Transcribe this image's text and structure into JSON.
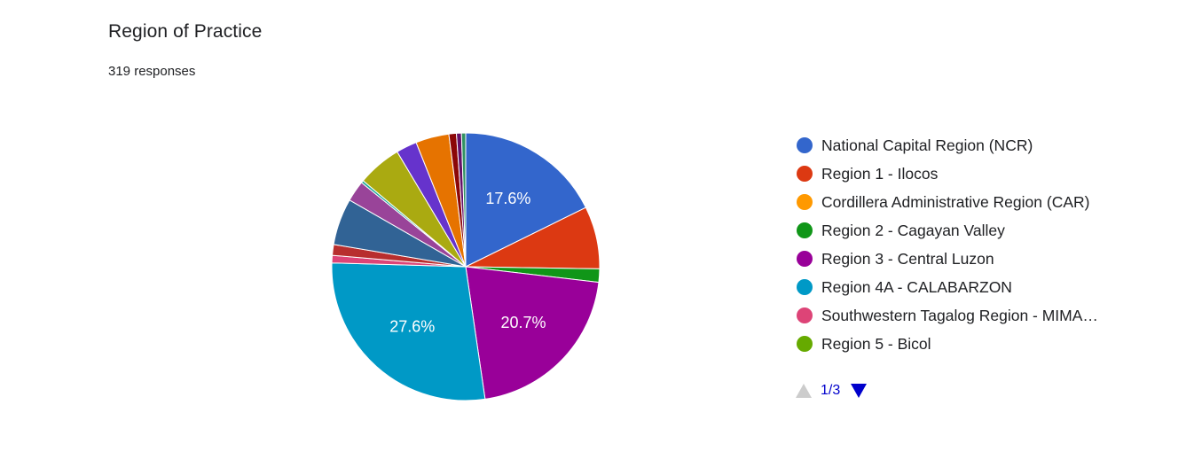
{
  "header": {
    "title": "Region of Practice",
    "responses": "319 responses"
  },
  "chart_data": {
    "type": "pie",
    "title": "Region of Practice",
    "start_angle_deg": 0,
    "direction": "clockwise",
    "slices": [
      {
        "name": "National Capital Region (NCR)",
        "value": 17.6,
        "color": "#3366cc",
        "label": "17.6%"
      },
      {
        "name": "Region 1 - Ilocos",
        "value": 7.5,
        "color": "#dc3912"
      },
      {
        "name": "Cordillera Administrative Region (CAR)",
        "value": 0.0,
        "color": "#ff9900"
      },
      {
        "name": "Region 2 - Cagayan Valley",
        "value": 1.6,
        "color": "#109618"
      },
      {
        "name": "Region 3 - Central Luzon",
        "value": 20.7,
        "color": "#990099",
        "label": "20.7%"
      },
      {
        "name": "Region 4A - CALABARZON",
        "value": 27.6,
        "color": "#0099c6",
        "label": "27.6%"
      },
      {
        "name": "Southwestern Tagalog Region - MIMAROPA",
        "value": 0.9,
        "color": "#dd4477"
      },
      {
        "name": "Region 5 - Bicol",
        "value": 0.0,
        "color": "#66aa00"
      },
      {
        "name": "",
        "value": 1.3,
        "color": "#b82e2e"
      },
      {
        "name": "",
        "value": 5.6,
        "color": "#316395"
      },
      {
        "name": "",
        "value": 2.5,
        "color": "#994499"
      },
      {
        "name": "",
        "value": 0.3,
        "color": "#22aa99"
      },
      {
        "name": "",
        "value": 5.3,
        "color": "#aaaa11"
      },
      {
        "name": "",
        "value": 2.5,
        "color": "#6633cc"
      },
      {
        "name": "",
        "value": 4.0,
        "color": "#e67300"
      },
      {
        "name": "",
        "value": 0.9,
        "color": "#8b0707"
      },
      {
        "name": "",
        "value": 0.6,
        "color": "#651067"
      },
      {
        "name": "",
        "value": 0.5,
        "color": "#329262"
      }
    ]
  },
  "legend": {
    "items": [
      {
        "label": "National Capital Region (NCR)",
        "color": "#3366cc"
      },
      {
        "label": "Region 1 - Ilocos",
        "color": "#dc3912"
      },
      {
        "label": "Cordillera Administrative Region (CAR)",
        "color": "#ff9900"
      },
      {
        "label": "Region 2 - Cagayan Valley",
        "color": "#109618"
      },
      {
        "label": "Region 3 - Central Luzon",
        "color": "#990099"
      },
      {
        "label": "Region 4A - CALABARZON",
        "color": "#0099c6"
      },
      {
        "label": "Southwestern Tagalog Region - MIMA…",
        "color": "#dd4477"
      },
      {
        "label": "Region 5 - Bicol",
        "color": "#66aa00"
      }
    ]
  },
  "pager": {
    "text": "1/3",
    "up_icon": "triangle-up-icon",
    "down_icon": "triangle-down-icon"
  }
}
